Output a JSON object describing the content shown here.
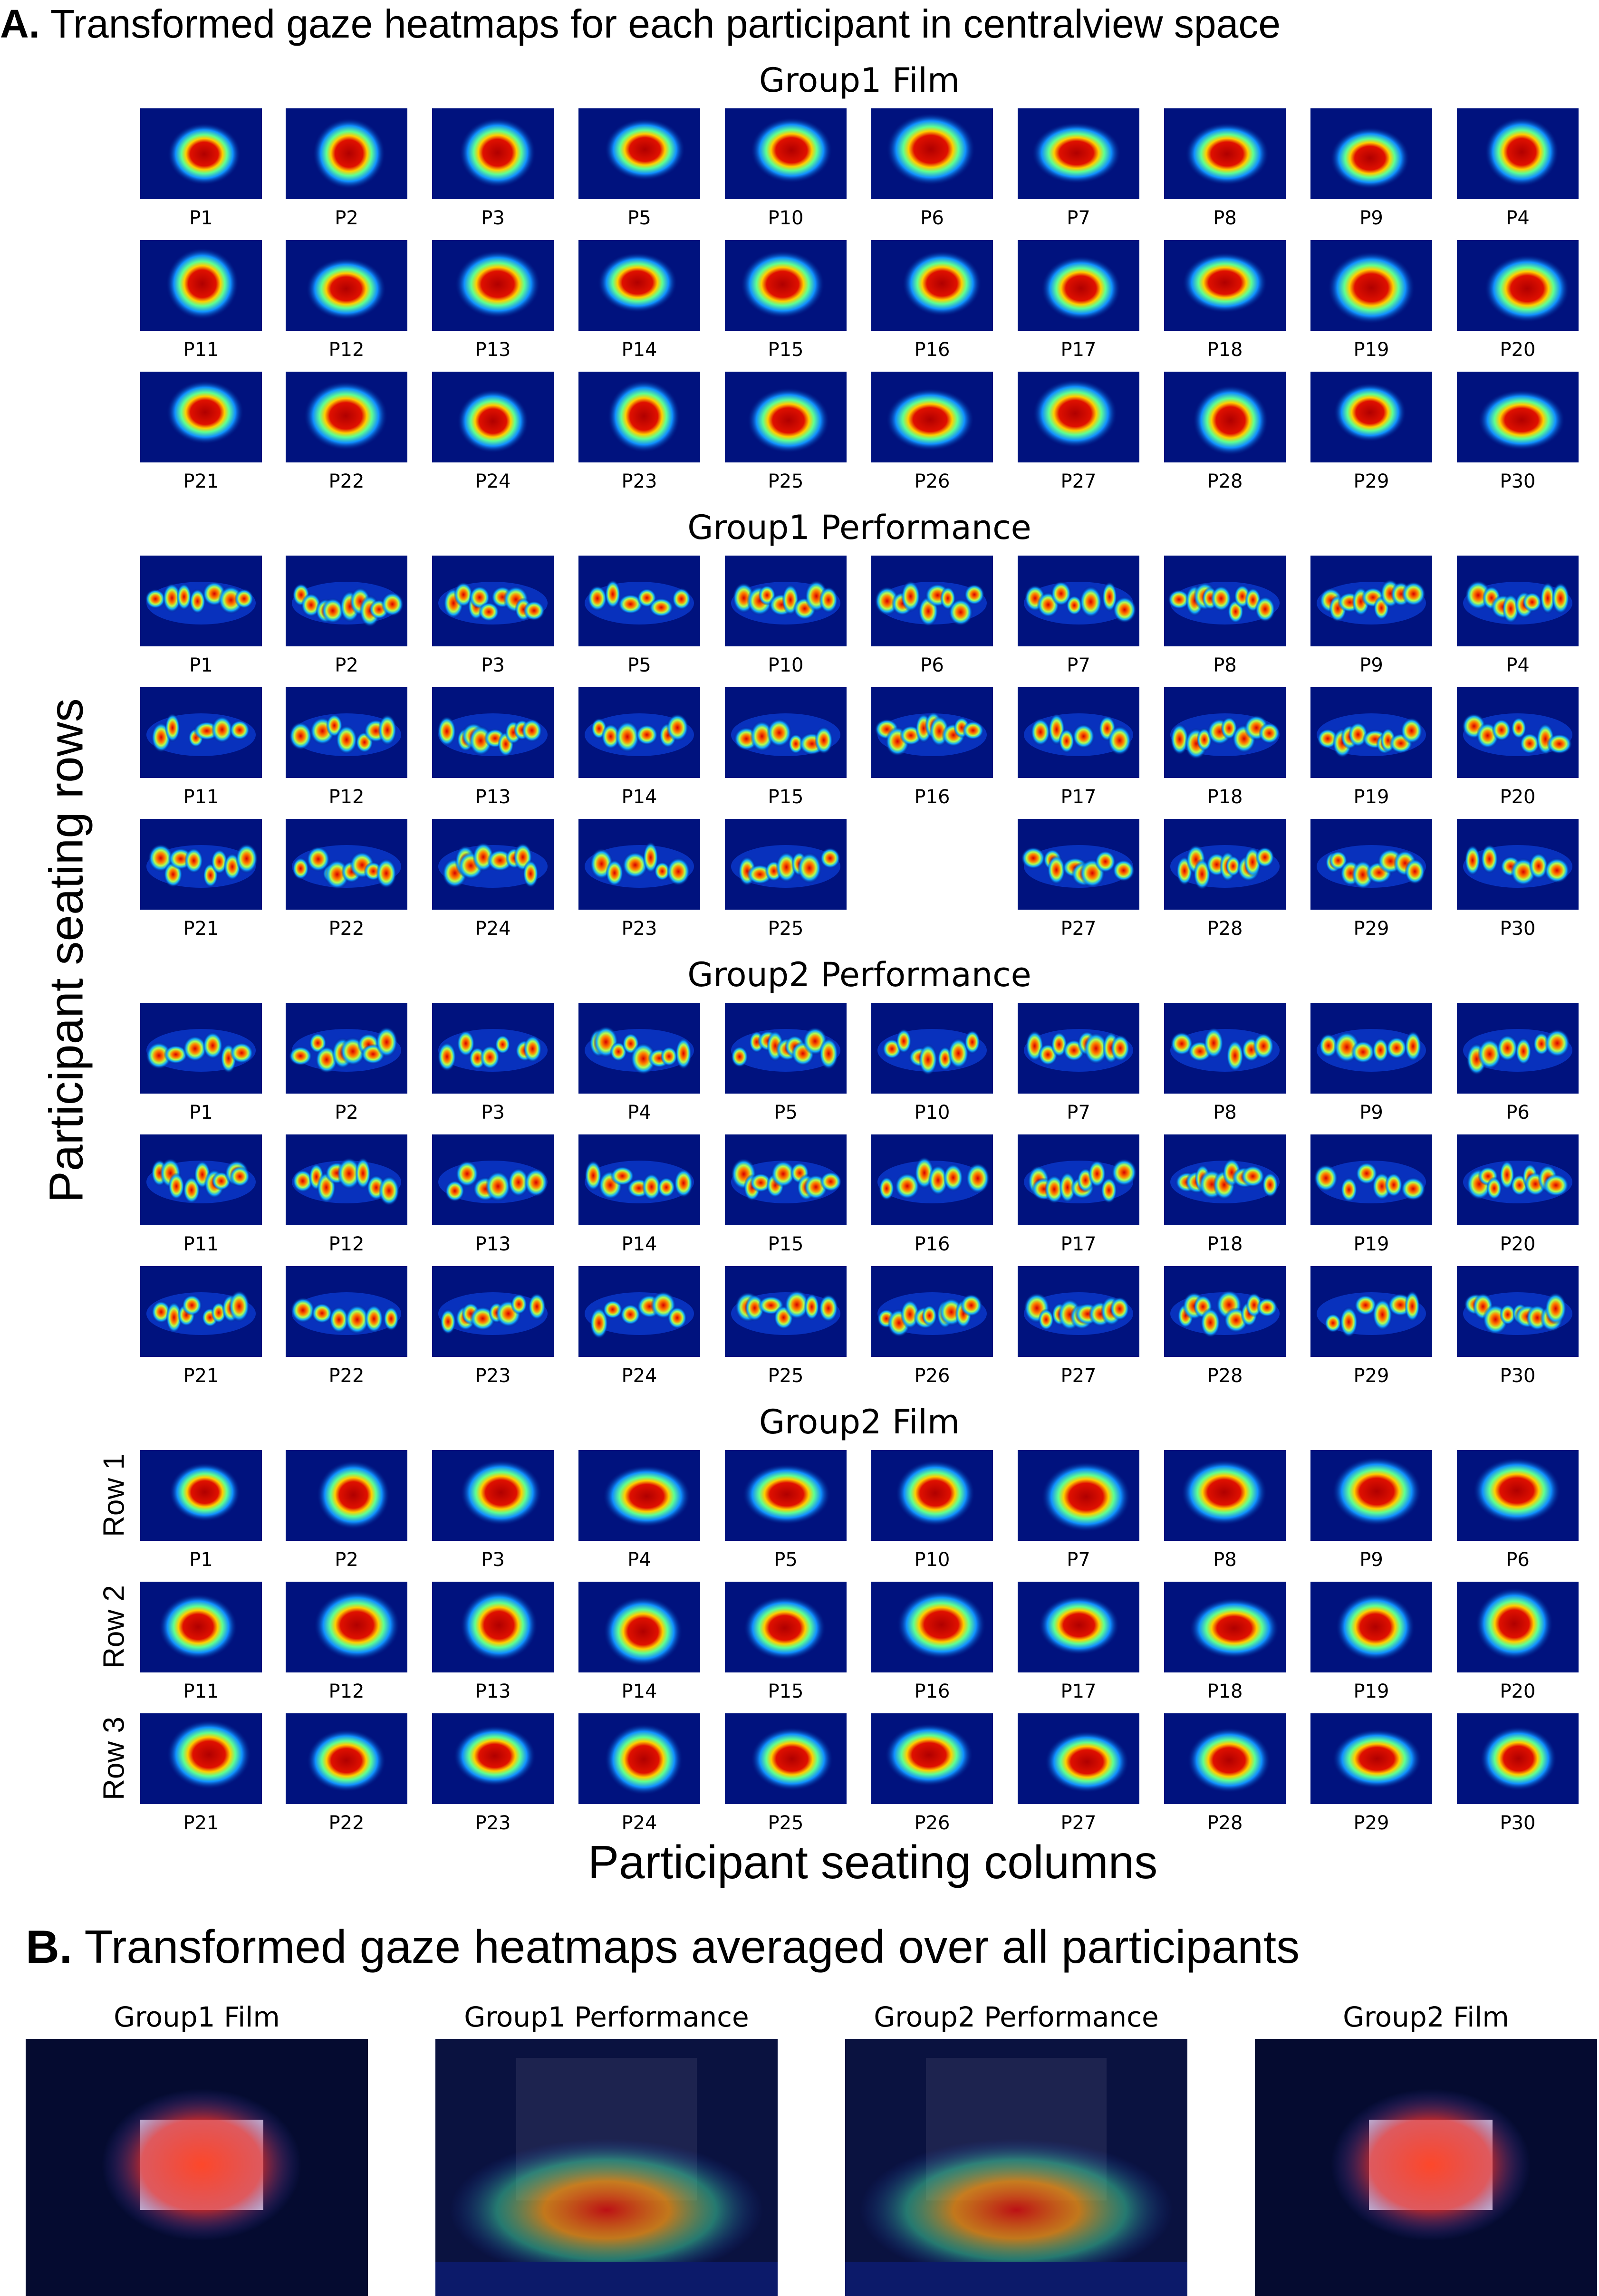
{
  "section_a": {
    "letter": "A.",
    "title": "Transformed gaze heatmaps for each participant in centralview space"
  },
  "section_b": {
    "letter": "B.",
    "title": "Transformed gaze heatmaps averaged over all participants"
  },
  "axis": {
    "ylabel": "Participant seating rows",
    "xlabel": "Participant seating columns"
  },
  "row_labels": [
    "Row 1",
    "Row 2",
    "Row 3"
  ],
  "groups": [
    {
      "title": "Group1 Film",
      "kind": "film",
      "rows": [
        [
          "P1",
          "P2",
          "P3",
          "P5",
          "P10",
          "P6",
          "P7",
          "P8",
          "P9",
          "P4"
        ],
        [
          "P11",
          "P12",
          "P13",
          "P14",
          "P15",
          "P16",
          "P17",
          "P18",
          "P19",
          "P20"
        ],
        [
          "P21",
          "P22",
          "P24",
          "P23",
          "P25",
          "P26",
          "P27",
          "P28",
          "P29",
          "P30"
        ]
      ]
    },
    {
      "title": "Group1 Performance",
      "kind": "perf",
      "rows": [
        [
          "P1",
          "P2",
          "P3",
          "P5",
          "P10",
          "P6",
          "P7",
          "P8",
          "P9",
          "P4"
        ],
        [
          "P11",
          "P12",
          "P13",
          "P14",
          "P15",
          "P16",
          "P17",
          "P18",
          "P19",
          "P20"
        ],
        [
          "P21",
          "P22",
          "P24",
          "P23",
          "P25",
          "",
          "P27",
          "P28",
          "P29",
          "P30"
        ]
      ]
    },
    {
      "title": "Group2 Performance",
      "kind": "perf",
      "rows": [
        [
          "P1",
          "P2",
          "P3",
          "P4",
          "P5",
          "P10",
          "P7",
          "P8",
          "P9",
          "P6"
        ],
        [
          "P11",
          "P12",
          "P13",
          "P14",
          "P15",
          "P16",
          "P17",
          "P18",
          "P19",
          "P20"
        ],
        [
          "P21",
          "P22",
          "P23",
          "P24",
          "P25",
          "P26",
          "P27",
          "P28",
          "P29",
          "P30"
        ]
      ]
    },
    {
      "title": "Group2 Film",
      "kind": "film",
      "rows": [
        [
          "P1",
          "P2",
          "P3",
          "P4",
          "P5",
          "P10",
          "P7",
          "P8",
          "P9",
          "P6"
        ],
        [
          "P11",
          "P12",
          "P13",
          "P14",
          "P15",
          "P16",
          "P17",
          "P18",
          "P19",
          "P20"
        ],
        [
          "P21",
          "P22",
          "P23",
          "P24",
          "P25",
          "P26",
          "P27",
          "P28",
          "P29",
          "P30"
        ]
      ]
    }
  ],
  "averages": [
    {
      "title": "Group1 Film",
      "kind": "film"
    },
    {
      "title": "Group1 Performance",
      "kind": "perf"
    },
    {
      "title": "Group2 Performance",
      "kind": "perf"
    },
    {
      "title": "Group2 Film",
      "kind": "film"
    }
  ]
}
